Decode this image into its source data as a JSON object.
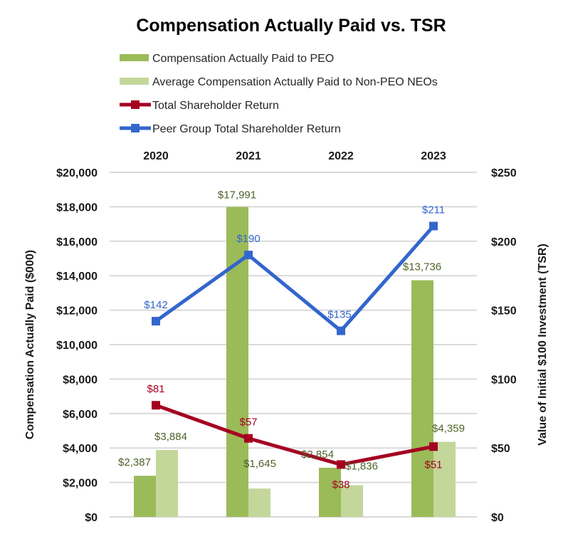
{
  "chart_data": {
    "type": "bar",
    "title": "Compensation Actually Paid vs. TSR",
    "categories": [
      "2020",
      "2021",
      "2022",
      "2023"
    ],
    "category_axis_position": "top",
    "series": [
      {
        "name": "Compensation Actually Paid to PEO",
        "kind": "bar",
        "axis": "left",
        "color": "#9BBB59",
        "label_color": "#4F6228",
        "values": [
          2387,
          17991,
          2854,
          13736
        ],
        "labels": [
          "$2,387",
          "$17,991",
          "$2,854",
          "$13,736"
        ]
      },
      {
        "name": "Average Compensation Actually Paid to Non-PEO NEOs",
        "kind": "bar",
        "axis": "left",
        "color": "#C4D79B",
        "label_color": "#4F6228",
        "values": [
          3884,
          1645,
          1836,
          4359
        ],
        "labels": [
          "$3,884",
          "$1,645",
          "$1,836",
          "$4,359"
        ]
      },
      {
        "name": "Total Shareholder Return",
        "kind": "line",
        "axis": "right",
        "color": "#A50021",
        "label_color": "#A50021",
        "values": [
          81,
          57,
          38,
          51
        ],
        "labels": [
          "$81",
          "$57",
          "$38",
          "$51"
        ]
      },
      {
        "name": "Peer Group Total Shareholder Return",
        "kind": "line",
        "axis": "right",
        "color": "#3366CC",
        "label_color": "#3366CC",
        "values": [
          142,
          190,
          135,
          211
        ],
        "labels": [
          "$142",
          "$190",
          "$135",
          "$211"
        ]
      }
    ],
    "left_axis": {
      "title": "Compensation Actually Paid ($000)",
      "range": [
        0,
        20000
      ],
      "ticks": [
        "$0",
        "$2,000",
        "$4,000",
        "$6,000",
        "$8,000",
        "$10,000",
        "$12,000",
        "$14,000",
        "$16,000",
        "$18,000",
        "$20,000"
      ]
    },
    "right_axis": {
      "title": "Value of Initial $100 Investment (TSR)",
      "range": [
        0,
        250
      ],
      "ticks": [
        "$0",
        "$50",
        "$100",
        "$150",
        "$200",
        "$250"
      ]
    },
    "grid": true,
    "legend_position": "top"
  }
}
